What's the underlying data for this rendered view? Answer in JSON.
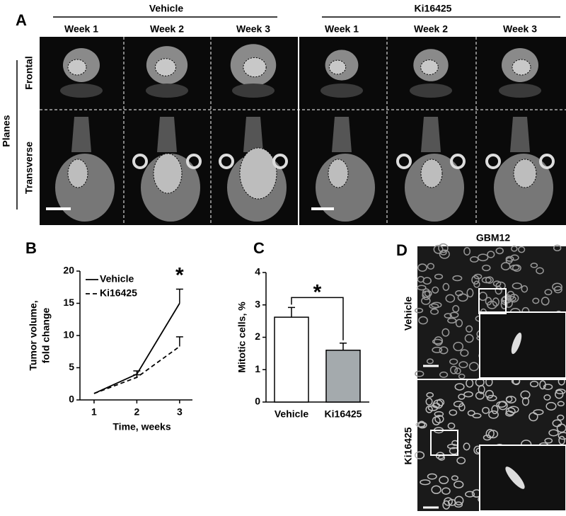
{
  "panels": {
    "a": {
      "label": "A",
      "groups": [
        "Vehicle",
        "Ki16425"
      ],
      "weeks": [
        "Week 1",
        "Week 2",
        "Week 3",
        "Week 1",
        "Week 2",
        "Week 3"
      ],
      "planes": "Planes",
      "rows": [
        "Frontal",
        "Transverse"
      ]
    },
    "d": {
      "label": "D",
      "title": "GBM12",
      "rows": [
        "Vehicle",
        "Ki16425"
      ]
    }
  },
  "chart_data": [
    {
      "type": "line",
      "panel_label": "B",
      "xlabel": "Time, weeks",
      "ylabel": [
        "Tumor volume,",
        "fold change"
      ],
      "x": [
        1,
        2,
        3
      ],
      "xlim": [
        0.67,
        3.3
      ],
      "xticks": [
        1,
        2,
        3
      ],
      "ylim": [
        0,
        20
      ],
      "yticks": [
        0,
        5,
        10,
        15,
        20
      ],
      "legend": "upper left",
      "annotation": "*",
      "series": [
        {
          "name": "Vehicle",
          "color": "#000000",
          "style": "solid",
          "values": [
            1,
            4,
            15
          ],
          "errors": [
            null,
            0.5,
            2.2
          ]
        },
        {
          "name": "Ki16425",
          "color": "#000000",
          "style": "dashed",
          "values": [
            1,
            3.5,
            8.3
          ],
          "errors": [
            null,
            0.4,
            1.5
          ]
        }
      ]
    },
    {
      "type": "bar",
      "panel_label": "C",
      "ylabel": "Mitotic cells, %",
      "annotation": "*",
      "categories": [
        "Vehicle",
        "Ki16425"
      ],
      "values": [
        2.62,
        1.6
      ],
      "errors": [
        0.3,
        0.22
      ],
      "colors": [
        "#ffffff",
        "#a4aaad"
      ],
      "ylim": [
        0,
        4
      ],
      "yticks": [
        0,
        1,
        2,
        3,
        4
      ]
    }
  ]
}
